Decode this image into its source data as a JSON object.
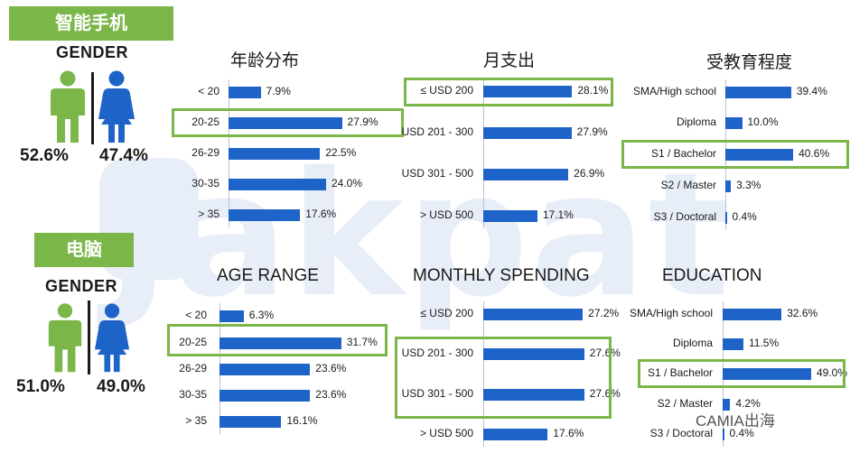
{
  "watermark": "Jakpat",
  "branding": {
    "logo": "CAMIA出海"
  },
  "smartphone": {
    "label": "智能手机",
    "gender_title": "GENDER",
    "male_pct": "52.6%",
    "female_pct": "47.4%",
    "age_title": "年龄分布",
    "spending_title": "月支出",
    "education_title": "受教育程度"
  },
  "pc": {
    "label": "电脑",
    "gender_title": "GENDER",
    "male_pct": "51.0%",
    "female_pct": "49.0%",
    "age_title": "AGE RANGE",
    "spending_title": "MONTHLY SPENDING",
    "education_title": "EDUCATION"
  },
  "colors": {
    "bar": "#1e63c8",
    "accent_green": "#7ab648",
    "male": "#7ab648",
    "female": "#1e63c8"
  },
  "chart_data": [
    {
      "id": "sp-age",
      "type": "bar",
      "orientation": "horizontal",
      "title": "年龄分布",
      "categories": [
        "< 20",
        "20-25",
        "26-29",
        "30-35",
        "> 35"
      ],
      "values": [
        7.9,
        27.9,
        22.5,
        24.0,
        17.6
      ],
      "labels": [
        "7.9%",
        "27.9%",
        "22.5%",
        "24.0%",
        "17.6%"
      ],
      "highlight": [
        1
      ]
    },
    {
      "id": "sp-spend",
      "type": "bar",
      "orientation": "horizontal",
      "title": "月支出",
      "categories": [
        "≤ USD 200",
        "USD 201 - 300",
        "USD 301 - 500",
        "> USD 500"
      ],
      "values": [
        28.1,
        27.9,
        26.9,
        17.1
      ],
      "labels": [
        "28.1%",
        "27.9%",
        "26.9%",
        "17.1%"
      ],
      "highlight": [
        0
      ]
    },
    {
      "id": "sp-edu",
      "type": "bar",
      "orientation": "horizontal",
      "title": "受教育程度",
      "categories": [
        "SMA/High school",
        "Diploma",
        "S1 / Bachelor",
        "S2 / Master",
        "S3 / Doctoral"
      ],
      "values": [
        39.4,
        10.0,
        40.6,
        3.3,
        0.4
      ],
      "labels": [
        "39.4%",
        "10.0%",
        "40.6%",
        "3.3%",
        "0.4%"
      ],
      "highlight": [
        2
      ]
    },
    {
      "id": "pc-age",
      "type": "bar",
      "orientation": "horizontal",
      "title": "AGE RANGE",
      "categories": [
        "< 20",
        "20-25",
        "26-29",
        "30-35",
        "> 35"
      ],
      "values": [
        6.3,
        31.7,
        23.6,
        23.6,
        16.1
      ],
      "labels": [
        "6.3%",
        "31.7%",
        "23.6%",
        "23.6%",
        "16.1%"
      ],
      "highlight": [
        1
      ]
    },
    {
      "id": "pc-spend",
      "type": "bar",
      "orientation": "horizontal",
      "title": "MONTHLY SPENDING",
      "categories": [
        "≤ USD 200",
        "USD 201 - 300",
        "USD 301 - 500",
        "> USD 500"
      ],
      "values": [
        27.2,
        27.6,
        27.6,
        17.6
      ],
      "labels": [
        "27.2%",
        "27.6%",
        "27.6%",
        "17.6%"
      ],
      "highlight": [
        1,
        2
      ]
    },
    {
      "id": "pc-edu",
      "type": "bar",
      "orientation": "horizontal",
      "title": "EDUCATION",
      "categories": [
        "SMA/High school",
        "Diploma",
        "S1 / Bachelor",
        "S2 / Master",
        "S3 / Doctoral"
      ],
      "values": [
        32.6,
        11.5,
        49.0,
        4.2,
        0.4
      ],
      "labels": [
        "32.6%",
        "11.5%",
        "49.0%",
        "4.2%",
        "0.4%"
      ],
      "highlight": [
        2
      ]
    }
  ]
}
